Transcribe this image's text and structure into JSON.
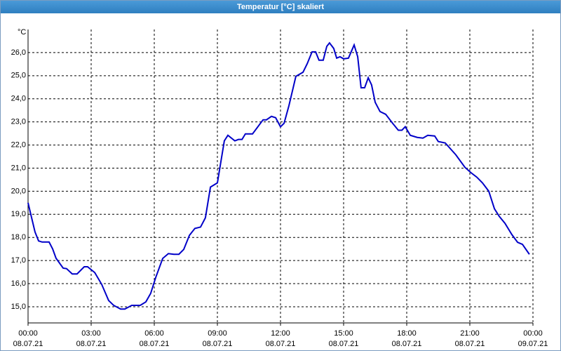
{
  "window_title": "Temperatur [°C] skaliert",
  "chart_data": {
    "type": "line",
    "y_unit": "°C",
    "x": [
      0,
      0.17,
      0.33,
      0.5,
      0.67,
      1.0,
      1.17,
      1.33,
      1.67,
      1.83,
      2.1,
      2.33,
      2.67,
      2.83,
      3.17,
      3.5,
      3.83,
      4.07,
      4.4,
      4.6,
      4.93,
      5.33,
      5.6,
      5.83,
      6.07,
      6.4,
      6.67,
      6.93,
      7.17,
      7.4,
      7.67,
      7.93,
      8.2,
      8.43,
      8.67,
      9.0,
      9.33,
      9.5,
      9.83,
      10.0,
      10.17,
      10.33,
      10.67,
      11.17,
      11.33,
      11.57,
      11.77,
      12.0,
      12.17,
      12.4,
      12.73,
      13.07,
      13.27,
      13.5,
      13.67,
      13.83,
      14.03,
      14.2,
      14.33,
      14.53,
      14.67,
      14.83,
      15.0,
      15.23,
      15.5,
      15.67,
      15.83,
      16.0,
      16.17,
      16.33,
      16.5,
      16.73,
      17.0,
      17.33,
      17.6,
      17.77,
      17.93,
      18.17,
      18.5,
      18.77,
      19.0,
      19.33,
      19.5,
      19.83,
      20.33,
      20.77,
      21.07,
      21.33,
      21.6,
      21.9,
      22.17,
      22.4,
      22.67,
      23.0,
      23.27,
      23.5,
      23.83
    ],
    "series": [
      {
        "color": "#0000c8",
        "values": [
          19.5,
          18.85,
          18.24,
          17.85,
          17.8,
          17.8,
          17.5,
          17.1,
          16.67,
          16.65,
          16.42,
          16.42,
          16.73,
          16.73,
          16.48,
          15.97,
          15.27,
          15.06,
          14.9,
          14.9,
          15.06,
          15.06,
          15.21,
          15.58,
          16.27,
          17.09,
          17.3,
          17.27,
          17.27,
          17.48,
          18.09,
          18.39,
          18.45,
          18.85,
          20.18,
          20.36,
          22.18,
          22.42,
          22.18,
          22.24,
          22.24,
          22.48,
          22.48,
          23.09,
          23.09,
          23.24,
          23.18,
          22.79,
          22.94,
          23.7,
          24.97,
          25.15,
          25.52,
          26.03,
          26.03,
          25.67,
          25.67,
          26.27,
          26.42,
          26.18,
          25.76,
          25.82,
          25.73,
          25.76,
          26.33,
          25.82,
          24.48,
          24.48,
          24.91,
          24.6,
          23.85,
          23.45,
          23.33,
          22.94,
          22.64,
          22.64,
          22.79,
          22.42,
          22.33,
          22.3,
          22.42,
          22.39,
          22.15,
          22.09,
          21.58,
          21.03,
          20.79,
          20.61,
          20.36,
          20.0,
          19.24,
          18.91,
          18.61,
          18.12,
          17.79,
          17.7,
          17.27
        ]
      }
    ],
    "xlim": [
      0,
      24
    ],
    "xticks": [
      {
        "value": 0,
        "label": "00:00"
      },
      {
        "value": 3,
        "label": "03:00"
      },
      {
        "value": 6,
        "label": "06:00"
      },
      {
        "value": 9,
        "label": "09:00"
      },
      {
        "value": 12,
        "label": "12:00"
      },
      {
        "value": 15,
        "label": "15:00"
      },
      {
        "value": 18,
        "label": "18:00"
      },
      {
        "value": 21,
        "label": "21:00"
      },
      {
        "value": 24,
        "label": "00:00"
      }
    ],
    "xtick_dates": [
      "08.07.21",
      "08.07.21",
      "08.07.21",
      "08.07.21",
      "08.07.21",
      "08.07.21",
      "08.07.21",
      "08.07.21",
      "09.07.21"
    ],
    "ylim": [
      14.3,
      27.0
    ],
    "yticks": [
      {
        "value": 15,
        "label": "15,0"
      },
      {
        "value": 16,
        "label": "16,0"
      },
      {
        "value": 17,
        "label": "17,0"
      },
      {
        "value": 18,
        "label": "18,0"
      },
      {
        "value": 19,
        "label": "19,0"
      },
      {
        "value": 20,
        "label": "20,0"
      },
      {
        "value": 21,
        "label": "21,0"
      },
      {
        "value": 22,
        "label": "22,0"
      },
      {
        "value": 23,
        "label": "23,0"
      },
      {
        "value": 24,
        "label": "24,0"
      },
      {
        "value": 25,
        "label": "25,0"
      },
      {
        "value": 26,
        "label": "26,0"
      }
    ],
    "grid": true
  }
}
